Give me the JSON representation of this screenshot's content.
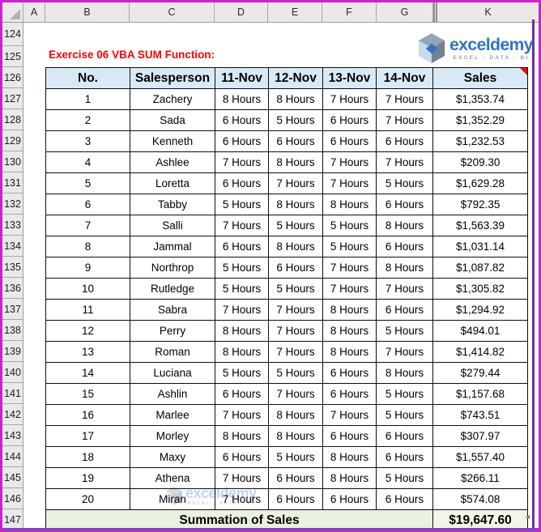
{
  "spreadsheet": {
    "column_letters": [
      "A",
      "B",
      "C",
      "D",
      "E",
      "F",
      "G",
      "K"
    ],
    "hidden_gap_after": "G",
    "row_numbers": [
      124,
      125,
      126,
      127,
      128,
      129,
      130,
      131,
      132,
      133,
      134,
      135,
      136,
      137,
      138,
      139,
      140,
      141,
      142,
      143,
      144,
      145,
      146,
      147
    ]
  },
  "title": {
    "text": "Exercise 06 VBA SUM Function:"
  },
  "logo": {
    "name": "exceldemy",
    "tagline": "EXCEL - DATA - BI"
  },
  "table": {
    "headers": [
      "No.",
      "Salesperson",
      "11-Nov",
      "12-Nov",
      "13-Nov",
      "14-Nov",
      "Sales"
    ],
    "rows": [
      [
        "1",
        "Zachery",
        "8 Hours",
        "8 Hours",
        "7 Hours",
        "7 Hours",
        "$1,353.74"
      ],
      [
        "2",
        "Sada",
        "6 Hours",
        "5 Hours",
        "6 Hours",
        "7 Hours",
        "$1,352.29"
      ],
      [
        "3",
        "Kenneth",
        "6 Hours",
        "6 Hours",
        "6 Hours",
        "6 Hours",
        "$1,232.53"
      ],
      [
        "4",
        "Ashlee",
        "7 Hours",
        "8 Hours",
        "7 Hours",
        "7 Hours",
        "$209.30"
      ],
      [
        "5",
        "Loretta",
        "6 Hours",
        "7 Hours",
        "7 Hours",
        "5 Hours",
        "$1,629.28"
      ],
      [
        "6",
        "Tabby",
        "5 Hours",
        "8 Hours",
        "8 Hours",
        "6 Hours",
        "$792.35"
      ],
      [
        "7",
        "Salli",
        "7 Hours",
        "5 Hours",
        "5 Hours",
        "8 Hours",
        "$1,563.39"
      ],
      [
        "8",
        "Jammal",
        "6 Hours",
        "8 Hours",
        "5 Hours",
        "6 Hours",
        "$1,031.14"
      ],
      [
        "9",
        "Northrop",
        "5 Hours",
        "6 Hours",
        "7 Hours",
        "8 Hours",
        "$1,087.82"
      ],
      [
        "10",
        "Rutledge",
        "5 Hours",
        "5 Hours",
        "7 Hours",
        "7 Hours",
        "$1,305.82"
      ],
      [
        "11",
        "Sabra",
        "7 Hours",
        "7 Hours",
        "8 Hours",
        "6 Hours",
        "$1,294.92"
      ],
      [
        "12",
        "Perry",
        "8 Hours",
        "7 Hours",
        "8 Hours",
        "5 Hours",
        "$494.01"
      ],
      [
        "13",
        "Roman",
        "8 Hours",
        "7 Hours",
        "8 Hours",
        "7 Hours",
        "$1,414.82"
      ],
      [
        "14",
        "Luciana",
        "5 Hours",
        "5 Hours",
        "6 Hours",
        "8 Hours",
        "$279.44"
      ],
      [
        "15",
        "Ashlin",
        "6 Hours",
        "7 Hours",
        "6 Hours",
        "5 Hours",
        "$1,157.68"
      ],
      [
        "16",
        "Marlee",
        "7 Hours",
        "8 Hours",
        "7 Hours",
        "5 Hours",
        "$743.51"
      ],
      [
        "17",
        "Morley",
        "8 Hours",
        "8 Hours",
        "6 Hours",
        "6 Hours",
        "$307.97"
      ],
      [
        "18",
        "Maxy",
        "6 Hours",
        "5 Hours",
        "8 Hours",
        "6 Hours",
        "$1,557.40"
      ],
      [
        "19",
        "Athena",
        "7 Hours",
        "6 Hours",
        "8 Hours",
        "5 Hours",
        "$266.11"
      ],
      [
        "20",
        "Miran",
        "7 Hours",
        "6 Hours",
        "6 Hours",
        "6 Hours",
        "$574.08"
      ]
    ],
    "summary": {
      "label": "Summation of Sales",
      "value": "$19,647.60"
    }
  },
  "colors": {
    "frame": "#CC22CC",
    "header_fill": "#D9EAF7",
    "summary_fill": "#EAF1DC",
    "title_red": "#FF0000",
    "brand_blue": "#2E74C9",
    "table_border": "#0d0d0d",
    "right_edge_line": "#6B2FA8",
    "bottom_edge_line": "#5A57CF"
  }
}
